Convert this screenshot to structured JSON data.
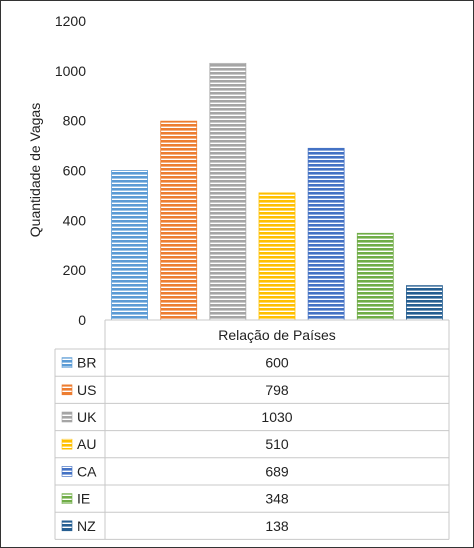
{
  "chart_data": {
    "type": "bar",
    "categories": [
      "BR",
      "US",
      "UK",
      "AU",
      "CA",
      "IE",
      "NZ"
    ],
    "values": [
      600,
      798,
      1030,
      510,
      689,
      348,
      138
    ],
    "colors": [
      "#5b9bd5",
      "#ed7d31",
      "#a5a5a5",
      "#ffc000",
      "#4472c4",
      "#70ad47",
      "#255e91"
    ],
    "title": "",
    "xlabel": "Relação de Países",
    "ylabel": "Quantidade de Vagas",
    "yticks": [
      "0",
      "200",
      "400",
      "600",
      "800",
      "1000",
      "1200"
    ],
    "ylim": [
      0,
      1200
    ],
    "grid": false,
    "legend": "data-table",
    "pattern": "horizontal-stripes"
  }
}
